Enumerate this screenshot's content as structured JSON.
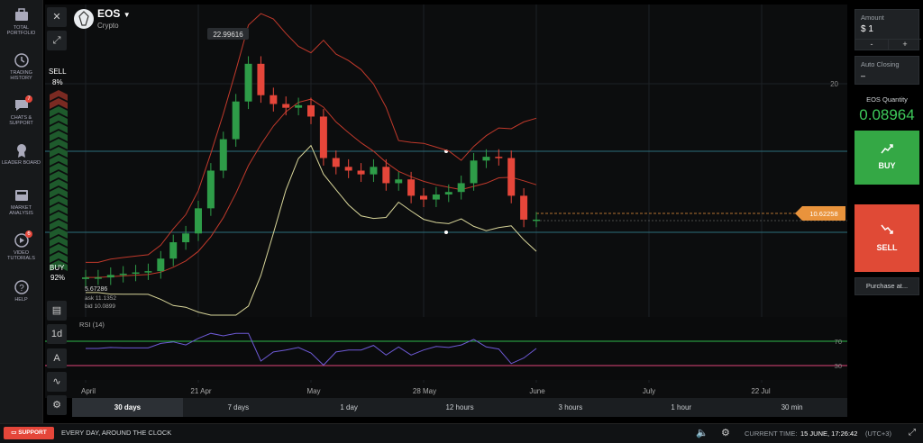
{
  "sidebar": {
    "items": [
      {
        "label": "TOTAL PORTFOLIO",
        "icon": "briefcase-icon"
      },
      {
        "label": "TRADING HISTORY",
        "icon": "history-icon"
      },
      {
        "label": "CHATS & SUPPORT",
        "icon": "chat-icon",
        "badge": "7"
      },
      {
        "label": "LEADER BOARD",
        "icon": "leaderboard-icon"
      },
      {
        "label": "MARKET ANALYSIS",
        "icon": "analysis-icon"
      },
      {
        "label": "VIDEO TUTORIALS",
        "icon": "video-icon",
        "badge": "6"
      },
      {
        "label": "HELP",
        "icon": "help-icon"
      }
    ]
  },
  "asset": {
    "name": "EOS",
    "type": "Crypto"
  },
  "sentiment": {
    "sell_label": "SELL",
    "sell_pct": "8%",
    "buy_label": "BUY",
    "buy_pct": "92%"
  },
  "chart": {
    "high_label": "22.99616",
    "low_label": "5.67286",
    "ask": "ask 11.1352",
    "bid": "bid 10.0899",
    "current_price": "10.62258",
    "price_tick": "20",
    "x_labels": [
      "April",
      "21 Apr",
      "May",
      "28 May",
      "June",
      "July",
      "22 Jul"
    ],
    "rsi_label": "RSI (14)",
    "rsi_levels": [
      "70",
      "30"
    ],
    "colors": {
      "up": "#2e9c48",
      "down": "#e5463a",
      "upper_band": "#c0392b",
      "lower_band": "#d9d69a",
      "rsi": "#6e5ad6",
      "rsi_70": "#2fb84a",
      "rsi_30": "#e0447a"
    }
  },
  "chart_data": {
    "type": "line",
    "title": "",
    "ylim": [
      3,
      27
    ],
    "series": [
      {
        "values": [
          6,
          6,
          6.2,
          6.3,
          6.4,
          6.5,
          7.5,
          8.8,
          9.5,
          11.5,
          14.5,
          17,
          20,
          23,
          20.5,
          19.8,
          19.5,
          19.7,
          18.8,
          15.5,
          14.8,
          14.5,
          14.2,
          14.8,
          13.5,
          13.8,
          12.5,
          12.2,
          12.6,
          12.8,
          13.5,
          15.3,
          15.6,
          15.5,
          12.5,
          10.6,
          10.6
        ]
      }
    ]
  },
  "left_tools": {
    "timeframe": "1d"
  },
  "timeframes": [
    "30 days",
    "7 days",
    "1 day",
    "12 hours",
    "3 hours",
    "1 hour",
    "30 min"
  ],
  "active_timeframe": "30 days",
  "trade": {
    "amount_label": "Amount",
    "amount_value": "$ 1",
    "minus": "-",
    "plus": "+",
    "auto_closing_label": "Auto Closing",
    "auto_closing_value": "–",
    "qty_label": "EOS Quantity",
    "qty_value": "0.08964",
    "buy_label": "BUY",
    "sell_label": "SELL",
    "purchase_at": "Purchase at..."
  },
  "status": {
    "support_label": "SUPPORT",
    "tagline": "EVERY DAY, AROUND THE CLOCK",
    "time_label": "CURRENT TIME:",
    "time_value": "15 JUNE, 17:26:42",
    "tz": "(UTC+3)"
  }
}
